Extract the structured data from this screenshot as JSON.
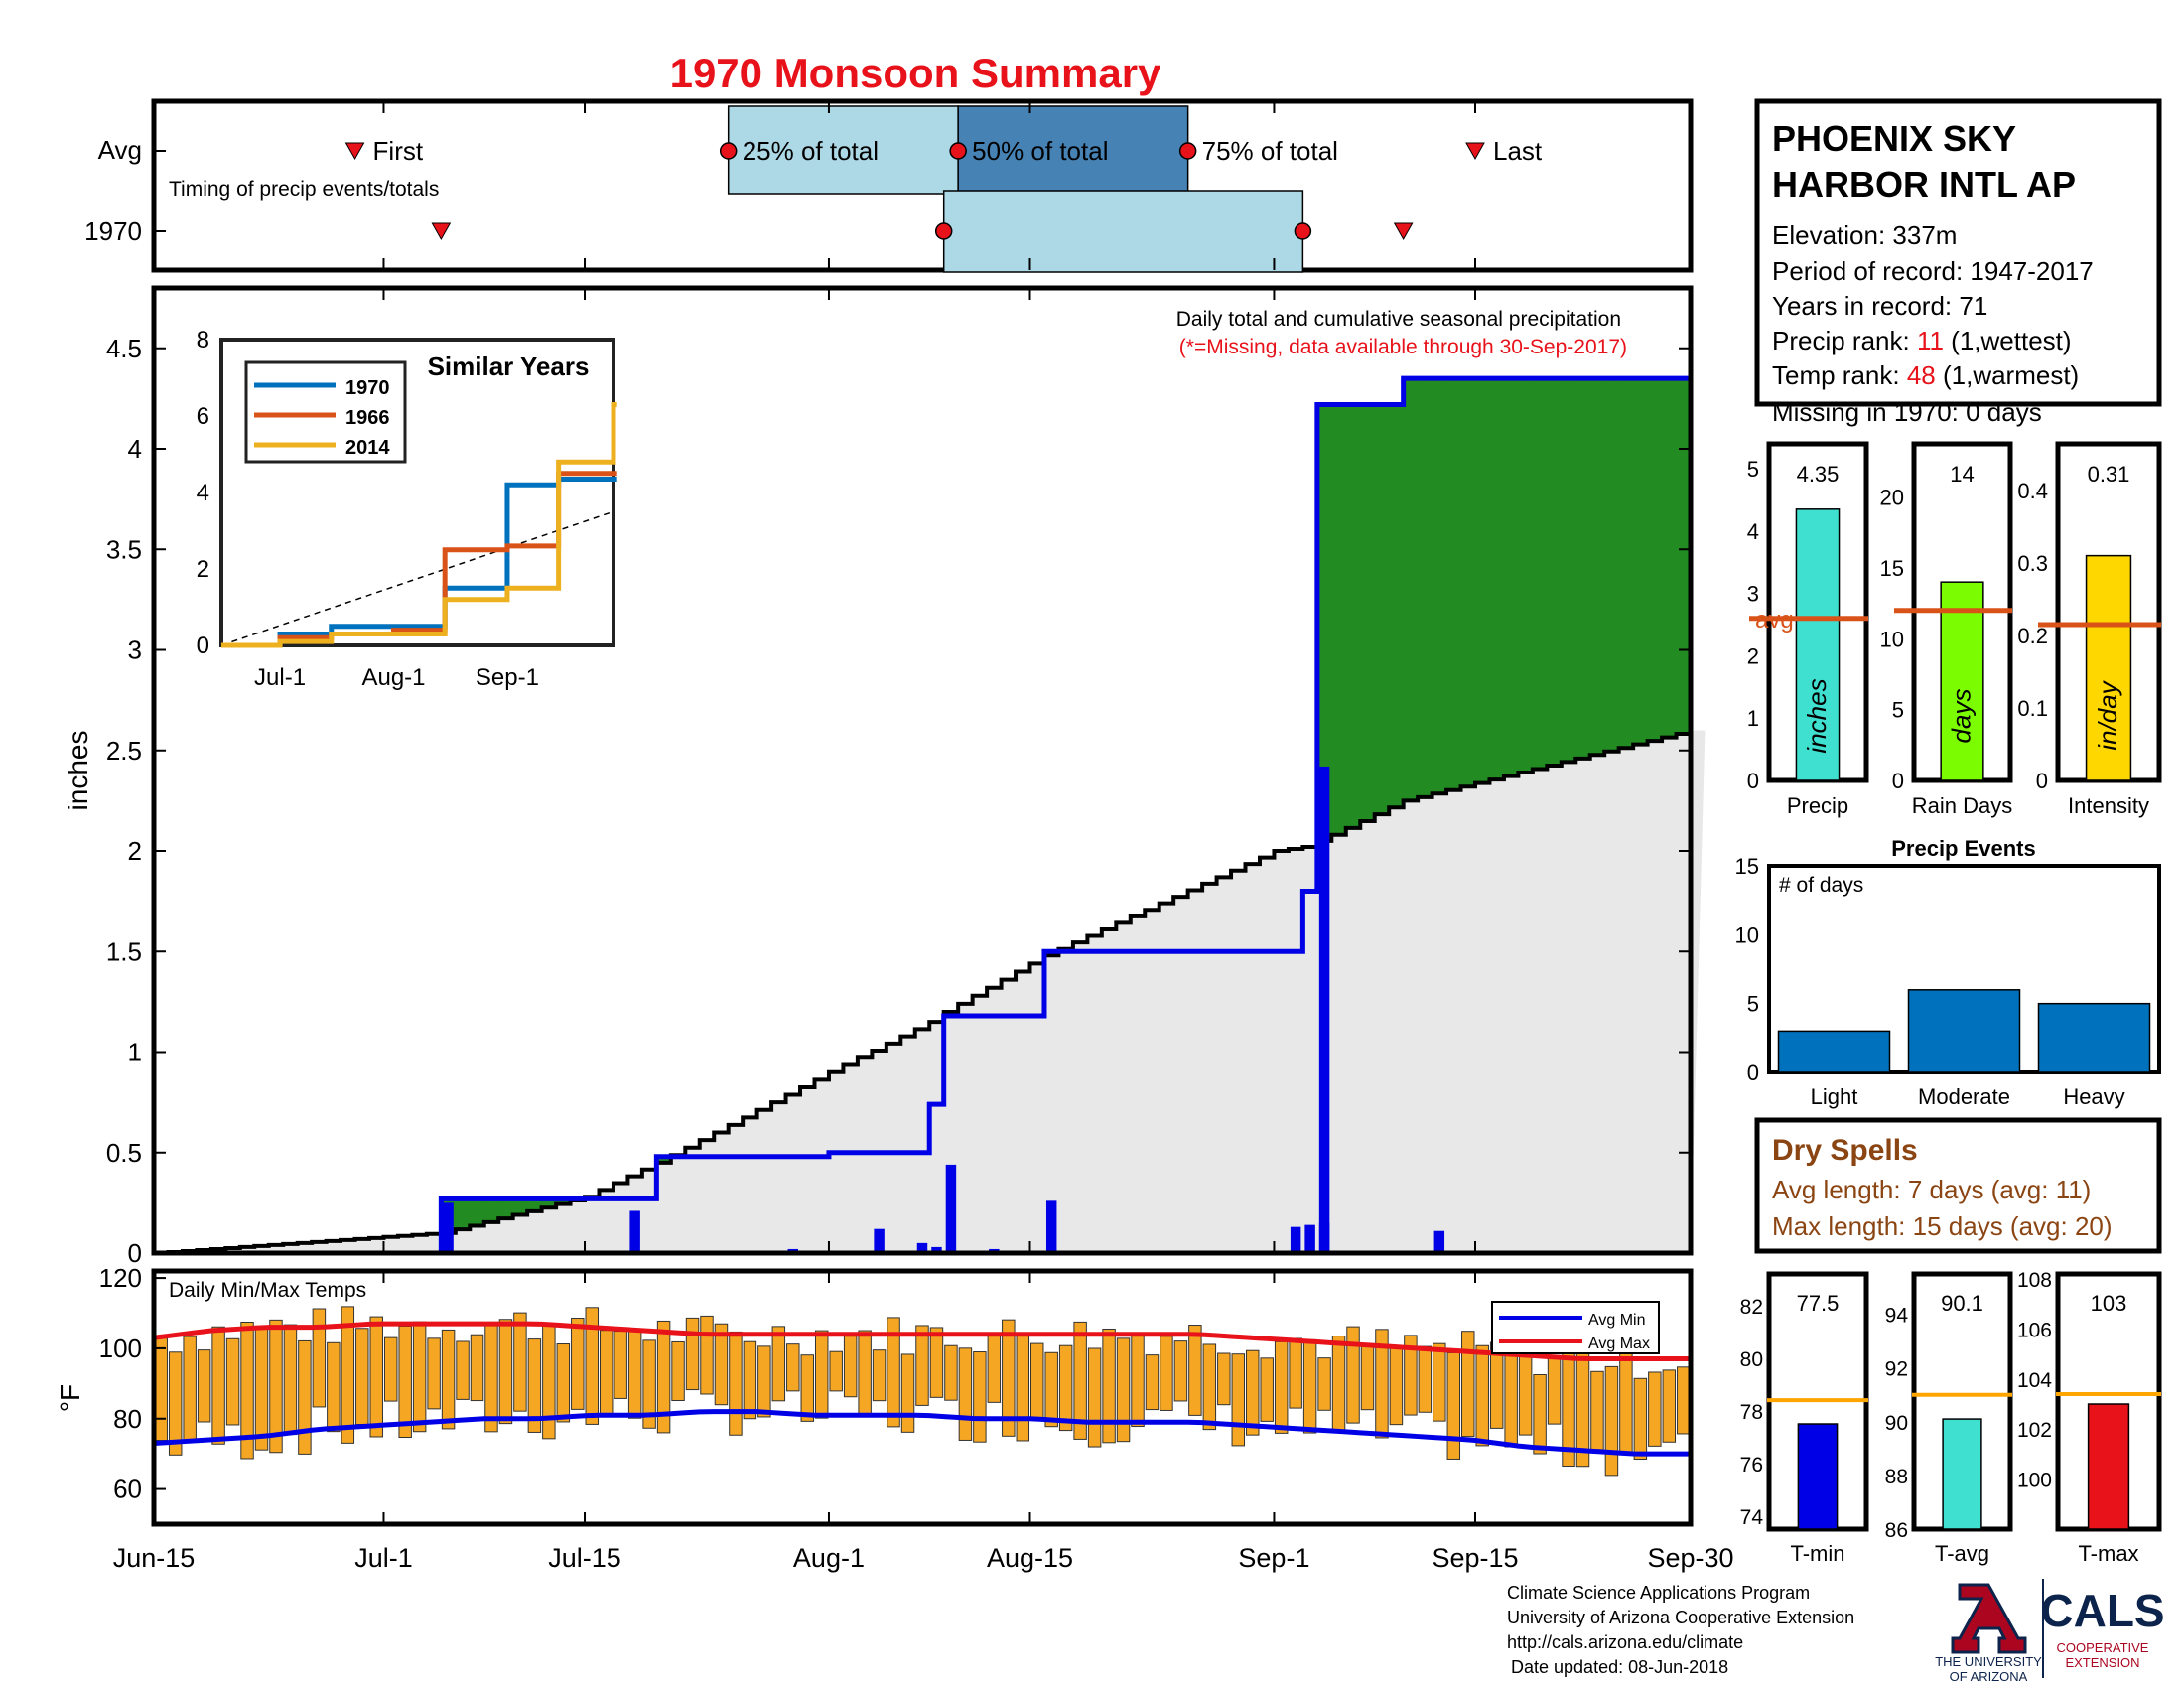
{
  "title": "1970 Monsoon Summary",
  "station": {
    "name_line1": "PHOENIX SKY",
    "name_line2": "HARBOR INTL AP",
    "elevation": "Elevation: 337m",
    "period": "Period of record: 1947-2017",
    "years": "Years in record: 71",
    "precip_rank_label": "Precip rank: ",
    "precip_rank": "11",
    "precip_rank_note": " (1,wettest)",
    "temp_rank_label": "Temp rank: ",
    "temp_rank": "48",
    "temp_rank_note": " (1,warmest)",
    "missing": "Missing in 1970: 0 days"
  },
  "timing": {
    "avg_label": "Avg",
    "year_label": "1970",
    "caption": "Timing of precip events/totals",
    "first": "First",
    "p25": "25% of total",
    "p50": "50% of total",
    "p75": "75% of total",
    "last": "Last",
    "avg_first": "Jun-29",
    "avg_p25": "Jul-25",
    "avg_p50": "Aug-10",
    "avg_p75": "Aug-26",
    "avg_last": "Sep-15",
    "yr_first": "Jul-5",
    "yr_p25": "Aug-9",
    "yr_p75": "Sep-3",
    "yr_last": "Sep-10"
  },
  "main": {
    "ylabel": "inches",
    "annotation": "Daily total and cumulative seasonal precipitation",
    "missing_note": "(*=Missing, data available through 30-Sep-2017)",
    "yticks": [
      "0",
      "0.5",
      "1",
      "1.5",
      "2",
      "2.5",
      "3",
      "3.5",
      "4",
      "4.5"
    ],
    "xticks": [
      "Jun-15",
      "Jul-1",
      "Jul-15",
      "Aug-1",
      "Aug-15",
      "Sep-1",
      "Sep-15",
      "Sep-30"
    ]
  },
  "inset": {
    "title": "Similar Years",
    "legend": [
      "1970",
      "1966",
      "2014"
    ],
    "yticks": [
      "0",
      "2",
      "4",
      "6",
      "8"
    ],
    "xticks": [
      "Jul-1",
      "Aug-1",
      "Sep-1"
    ]
  },
  "temps": {
    "label": "Daily Min/Max Temps",
    "ylabel": "°F",
    "yticks": [
      "60",
      "80",
      "100",
      "120"
    ],
    "legend_min": "Avg Min",
    "legend_max": "Avg Max"
  },
  "stats": {
    "precip": {
      "value": "4.35",
      "unit": "inches",
      "label": "Precip",
      "yticks": [
        "0",
        "1",
        "2",
        "3",
        "4",
        "5"
      ],
      "avg_label": "avg"
    },
    "rain_days": {
      "value": "14",
      "unit": "days",
      "label": "Rain Days",
      "yticks": [
        "0",
        "5",
        "10",
        "15",
        "20"
      ]
    },
    "intensity": {
      "value": "0.31",
      "unit": "in/day",
      "label": "Intensity",
      "yticks": [
        "0",
        "0.1",
        "0.2",
        "0.3",
        "0.4"
      ]
    }
  },
  "events": {
    "title": "Precip Events",
    "ylabel": "# of days",
    "categories": [
      "Light",
      "Moderate",
      "Heavy"
    ],
    "yticks": [
      "0",
      "5",
      "10",
      "15"
    ]
  },
  "dry_spells": {
    "title": "Dry Spells",
    "avg_length": "Avg length: 7 days (avg: 11)",
    "max_length": "Max length: 15 days (avg: 20)"
  },
  "temp_stats": {
    "tmin": {
      "value": "77.5",
      "label": "T-min",
      "yticks": [
        "74",
        "76",
        "78",
        "80",
        "82"
      ]
    },
    "tavg": {
      "value": "90.1",
      "label": "T-avg",
      "yticks": [
        "86",
        "88",
        "90",
        "92",
        "94"
      ]
    },
    "tmax": {
      "value": "103",
      "label": "T-max",
      "yticks": [
        "100",
        "102",
        "104",
        "106",
        "108"
      ]
    }
  },
  "footer": {
    "line1": "Climate Science Applications Program",
    "line2": "University of Arizona Cooperative Extension",
    "line3": "http://cals.arizona.edu/climate",
    "line4": "Date updated: 08-Jun-2018",
    "ua_line1": "THE UNIVERSITY",
    "ua_line2": "OF ARIZONA",
    "cals": "CALS",
    "coop1": "COOPERATIVE",
    "coop2": "EXTENSION"
  },
  "colors": {
    "title": "#e8121a",
    "accent_red": "#e8121a",
    "brown": "#8B4513",
    "blue": "#0000e6",
    "green": "#228B22",
    "gold": "#B8860B",
    "orange": "#F5A623",
    "grey_fill": "#E8E8E8",
    "cyan": "#40E0D0",
    "lime": "#7CFC00",
    "yellow": "#FFD700",
    "events_blue": "#0072BD",
    "avg_orange": "#D95319",
    "ua_navy": "#0C234B",
    "ua_red": "#AB0520"
  },
  "chart_data": [
    {
      "type": "line",
      "name": "cumulative precipitation",
      "x": [
        "Jun-15",
        "Jul-1",
        "Jul-5",
        "Jul-15",
        "Jul-20",
        "Aug-1",
        "Aug-8",
        "Aug-9",
        "Aug-16",
        "Sep-1",
        "Sep-3",
        "Sep-4",
        "Sep-5",
        "Sep-10",
        "Sep-30"
      ],
      "series": [
        {
          "name": "1970",
          "values": [
            0,
            0,
            0.27,
            0.27,
            0.48,
            0.5,
            0.74,
            1.18,
            1.5,
            1.5,
            1.8,
            4.22,
            4.22,
            4.35,
            4.35
          ]
        },
        {
          "name": "avg",
          "values": [
            0,
            0.08,
            0.1,
            0.28,
            0.45,
            0.9,
            1.15,
            1.2,
            1.48,
            2.0,
            2.02,
            2.05,
            2.08,
            2.25,
            2.6
          ]
        }
      ],
      "ylabel": "inches",
      "ylim": [
        0,
        4.8
      ]
    },
    {
      "type": "bar",
      "name": "daily precipitation",
      "x": [
        "Jul-5",
        "Jul-18",
        "Jul-29",
        "Aug-4",
        "Aug-7",
        "Aug-8",
        "Aug-9",
        "Aug-12",
        "Aug-16",
        "Aug-29",
        "Sep-2",
        "Sep-3",
        "Sep-4",
        "Sep-4",
        "Sep-12"
      ],
      "values": [
        0.25,
        0.21,
        0.02,
        0.12,
        0.05,
        0.03,
        0.44,
        0.02,
        0.26,
        0.01,
        0.13,
        0.14,
        0.15,
        2.42,
        0.11
      ]
    },
    {
      "type": "line",
      "name": "similar years",
      "x": [
        "Jun-15",
        "Jul-1",
        "Jul-15",
        "Aug-1",
        "Aug-15",
        "Sep-1",
        "Sep-15",
        "Sep-30"
      ],
      "series": [
        {
          "name": "1970",
          "values": [
            0,
            0.3,
            0.5,
            0.5,
            1.5,
            4.2,
            4.35,
            4.35
          ]
        },
        {
          "name": "1966",
          "values": [
            0,
            0.2,
            0.3,
            0.4,
            2.5,
            2.6,
            4.5,
            4.5
          ]
        },
        {
          "name": "2014",
          "values": [
            0,
            0.1,
            0.3,
            0.3,
            1.2,
            1.5,
            4.8,
            6.3
          ]
        }
      ],
      "ylim": [
        0,
        8
      ]
    },
    {
      "type": "bar",
      "name": "daily min/max temps",
      "x_start": "Jun-15",
      "x_end": "Sep-30",
      "series": [
        {
          "name": "Avg Min",
          "values": [
            73,
            74,
            75,
            77,
            78,
            79,
            80,
            80,
            81,
            81,
            82,
            82,
            81,
            81,
            81,
            80,
            80,
            79,
            79,
            79,
            78,
            77,
            76,
            75,
            74,
            72,
            71,
            70,
            70
          ]
        },
        {
          "name": "Avg Max",
          "values": [
            103,
            105,
            106,
            106,
            107,
            107,
            107,
            107,
            106,
            105,
            104,
            104,
            104,
            104,
            104,
            104,
            104,
            104,
            104,
            104,
            103,
            102,
            101,
            100,
            99,
            98,
            97,
            97,
            97
          ]
        }
      ],
      "ylabel": "°F",
      "ylim": [
        50,
        122
      ]
    },
    {
      "type": "bar",
      "name": "season stats",
      "categories": [
        "Precip",
        "Rain Days",
        "Intensity"
      ],
      "values": [
        4.35,
        14,
        0.31
      ],
      "avg": [
        2.6,
        12,
        0.215
      ]
    },
    {
      "type": "bar",
      "name": "precip events",
      "categories": [
        "Light",
        "Moderate",
        "Heavy"
      ],
      "values": [
        3,
        6,
        5
      ],
      "ylim": [
        0,
        15
      ]
    },
    {
      "type": "bar",
      "name": "temperature stats",
      "categories": [
        "T-min",
        "T-avg",
        "T-max"
      ],
      "values": [
        77.5,
        90.1,
        103
      ],
      "avg": [
        78.4,
        91,
        103.4
      ]
    }
  ]
}
